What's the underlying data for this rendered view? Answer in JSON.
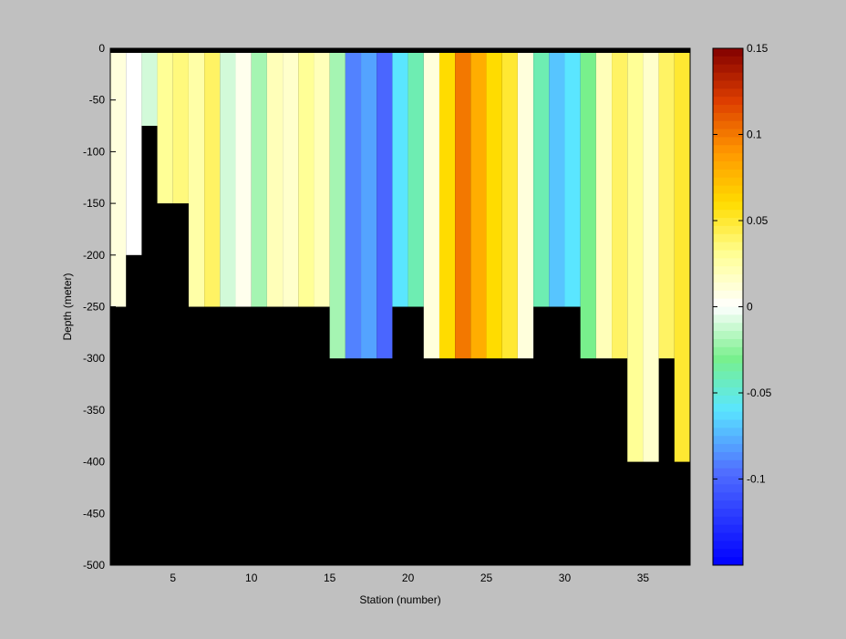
{
  "chart_data": {
    "type": "heatmap",
    "title": "",
    "xlabel": "Station (number)",
    "ylabel": "Depth (meter)",
    "xlim": [
      1,
      38
    ],
    "ylim": [
      -500,
      0
    ],
    "xticks": [
      "5",
      "10",
      "15",
      "20",
      "25",
      "30",
      "35"
    ],
    "xtick_values": [
      5,
      10,
      15,
      20,
      25,
      30,
      35
    ],
    "yticks": [
      "0",
      "-50",
      "-100",
      "-150",
      "-200",
      "-250",
      "-300",
      "-350",
      "-400",
      "-450",
      "-500"
    ],
    "ytick_values": [
      0,
      -50,
      -100,
      -150,
      -200,
      -250,
      -300,
      -350,
      -400,
      -450,
      -500
    ],
    "colorbar": {
      "range": [
        -0.15,
        0.15
      ],
      "colormap": "jet with white at 0",
      "tick_labels": [
        "0.15",
        "0.1",
        "0.05",
        "0",
        "-0.05",
        "-0.1"
      ],
      "tick_values": [
        0.15,
        0.1,
        0.05,
        0,
        -0.05,
        -0.1
      ]
    },
    "mask_color": "#000000",
    "background": "#c0c0c0",
    "station_columns": [
      {
        "station": 1,
        "value": 0.01,
        "bottom": -250
      },
      {
        "station": 2,
        "value": 0.0,
        "bottom": -200
      },
      {
        "station": 3,
        "value": -0.01,
        "bottom": -75
      },
      {
        "station": 4,
        "value": 0.03,
        "bottom": -150
      },
      {
        "station": 5,
        "value": 0.035,
        "bottom": -150
      },
      {
        "station": 6,
        "value": 0.025,
        "bottom": -250
      },
      {
        "station": 7,
        "value": 0.04,
        "bottom": -250
      },
      {
        "station": 8,
        "value": -0.01,
        "bottom": -250
      },
      {
        "station": 9,
        "value": 0.005,
        "bottom": -250
      },
      {
        "station": 10,
        "value": -0.02,
        "bottom": -250
      },
      {
        "station": 11,
        "value": 0.02,
        "bottom": -250
      },
      {
        "station": 12,
        "value": 0.015,
        "bottom": -250
      },
      {
        "station": 13,
        "value": 0.03,
        "bottom": -250
      },
      {
        "station": 14,
        "value": 0.02,
        "bottom": -250
      },
      {
        "station": 15,
        "value": -0.02,
        "bottom": -300
      },
      {
        "station": 16,
        "value": -0.09,
        "bottom": -300
      },
      {
        "station": 17,
        "value": -0.08,
        "bottom": -300
      },
      {
        "station": 18,
        "value": -0.1,
        "bottom": -300
      },
      {
        "station": 19,
        "value": -0.06,
        "bottom": -250
      },
      {
        "station": 20,
        "value": -0.04,
        "bottom": -250
      },
      {
        "station": 21,
        "value": 0.01,
        "bottom": -300
      },
      {
        "station": 22,
        "value": 0.06,
        "bottom": -300
      },
      {
        "station": 23,
        "value": 0.1,
        "bottom": -300
      },
      {
        "station": 24,
        "value": 0.08,
        "bottom": -300
      },
      {
        "station": 25,
        "value": 0.06,
        "bottom": -300
      },
      {
        "station": 26,
        "value": 0.05,
        "bottom": -300
      },
      {
        "station": 27,
        "value": 0.01,
        "bottom": -300
      },
      {
        "station": 28,
        "value": -0.04,
        "bottom": -250
      },
      {
        "station": 29,
        "value": -0.07,
        "bottom": -250
      },
      {
        "station": 30,
        "value": -0.06,
        "bottom": -250
      },
      {
        "station": 31,
        "value": -0.03,
        "bottom": -300
      },
      {
        "station": 32,
        "value": 0.02,
        "bottom": -300
      },
      {
        "station": 33,
        "value": 0.04,
        "bottom": -300
      },
      {
        "station": 34,
        "value": 0.03,
        "bottom": -400
      },
      {
        "station": 35,
        "value": 0.015,
        "bottom": -400
      },
      {
        "station": 36,
        "value": 0.04,
        "bottom": -300
      },
      {
        "station": 37,
        "value": 0.05,
        "bottom": -400
      }
    ]
  }
}
